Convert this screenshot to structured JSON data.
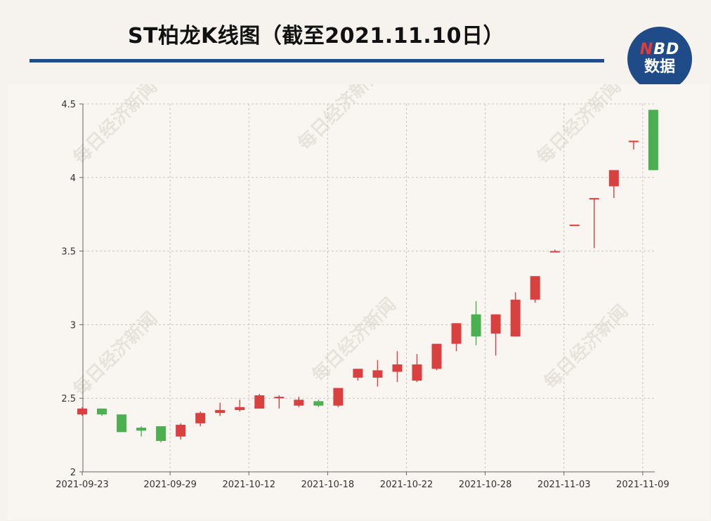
{
  "header": {
    "title": "ST柏龙K线图（截至2021.11.10日）"
  },
  "logo": {
    "line1_n": "N",
    "line1_rest": "BD",
    "line2": "数据"
  },
  "watermark": {
    "text": "每日经济新闻"
  },
  "chart_data": {
    "type": "candlestick",
    "title": "ST柏龙K线图（截至2021.11.10日）",
    "ylim": [
      2,
      4.5
    ],
    "yticks": [
      2,
      2.5,
      3,
      3.5,
      4,
      4.5
    ],
    "ytick_labels": [
      "2",
      "2.5",
      "3",
      "3.5",
      "4",
      "4.5"
    ],
    "xtick_labels": [
      "2021-09-23",
      "2021-09-29",
      "2021-10-12",
      "2021-10-18",
      "2021-10-22",
      "2021-10-28",
      "2021-11-03",
      "2021-11-09"
    ],
    "xtick_index": [
      0,
      4,
      8,
      12,
      16,
      20,
      24,
      28
    ],
    "grid": true,
    "up_color": "#d94040",
    "down_color": "#4caf50",
    "candles": [
      {
        "open": 2.39,
        "close": 2.43,
        "high": 2.44,
        "low": 2.38
      },
      {
        "open": 2.43,
        "close": 2.39,
        "high": 2.43,
        "low": 2.38
      },
      {
        "open": 2.39,
        "close": 2.27,
        "high": 2.39,
        "low": 2.27
      },
      {
        "open": 2.3,
        "close": 2.28,
        "high": 2.31,
        "low": 2.24
      },
      {
        "open": 2.31,
        "close": 2.21,
        "high": 2.31,
        "low": 2.2
      },
      {
        "open": 2.24,
        "close": 2.32,
        "high": 2.33,
        "low": 2.22
      },
      {
        "open": 2.33,
        "close": 2.4,
        "high": 2.41,
        "low": 2.31
      },
      {
        "open": 2.4,
        "close": 2.42,
        "high": 2.47,
        "low": 2.38
      },
      {
        "open": 2.42,
        "close": 2.44,
        "high": 2.49,
        "low": 2.41
      },
      {
        "open": 2.43,
        "close": 2.52,
        "high": 2.53,
        "low": 2.43
      },
      {
        "open": 2.51,
        "close": 2.51,
        "high": 2.52,
        "low": 2.43
      },
      {
        "open": 2.45,
        "close": 2.49,
        "high": 2.51,
        "low": 2.44
      },
      {
        "open": 2.48,
        "close": 2.45,
        "high": 2.49,
        "low": 2.44
      },
      {
        "open": 2.45,
        "close": 2.57,
        "high": 2.57,
        "low": 2.44
      },
      {
        "open": 2.64,
        "close": 2.7,
        "high": 2.7,
        "low": 2.62
      },
      {
        "open": 2.64,
        "close": 2.69,
        "high": 2.76,
        "low": 2.58
      },
      {
        "open": 2.68,
        "close": 2.73,
        "high": 2.82,
        "low": 2.61
      },
      {
        "open": 2.62,
        "close": 2.73,
        "high": 2.8,
        "low": 2.61
      },
      {
        "open": 2.7,
        "close": 2.87,
        "high": 2.87,
        "low": 2.69
      },
      {
        "open": 2.87,
        "close": 3.01,
        "high": 3.01,
        "low": 2.82
      },
      {
        "open": 3.07,
        "close": 2.92,
        "high": 3.16,
        "low": 2.86
      },
      {
        "open": 2.94,
        "close": 3.07,
        "high": 3.07,
        "low": 2.79
      },
      {
        "open": 2.92,
        "close": 3.17,
        "high": 3.22,
        "low": 2.92
      },
      {
        "open": 3.17,
        "close": 3.33,
        "high": 3.33,
        "low": 3.15
      },
      {
        "open": 3.5,
        "close": 3.5,
        "high": 3.51,
        "low": 3.5
      },
      {
        "open": 3.68,
        "close": 3.68,
        "high": 3.68,
        "low": 3.68
      },
      {
        "open": 3.86,
        "close": 3.86,
        "high": 3.86,
        "low": 3.52
      },
      {
        "open": 3.94,
        "close": 4.05,
        "high": 4.05,
        "low": 3.86
      },
      {
        "open": 4.24,
        "close": 4.25,
        "high": 4.25,
        "low": 4.19
      },
      {
        "open": 4.46,
        "close": 4.05,
        "high": 4.46,
        "low": 4.05
      }
    ]
  }
}
